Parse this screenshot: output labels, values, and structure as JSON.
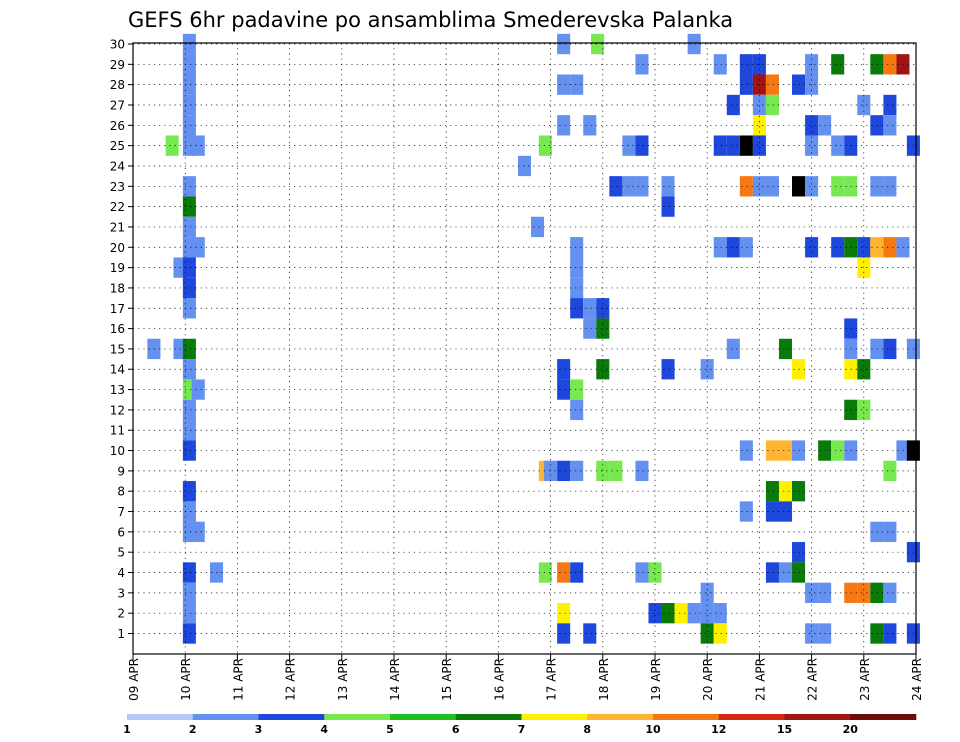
{
  "chart_data": {
    "type": "heatmap",
    "title": "GEFS 6hr padavine po ansamblima Smederevska Palanka",
    "xlabel": "",
    "ylabel": "",
    "x_ticks": [
      "09 APR",
      "10 APR",
      "11 APR",
      "12 APR",
      "13 APR",
      "14 APR",
      "15 APR",
      "16 APR",
      "17 APR",
      "18 APR",
      "19 APR",
      "20 APR",
      "21 APR",
      "22 APR",
      "23 APR",
      "24 APR"
    ],
    "x_range_days": [
      9,
      24
    ],
    "y_ticks": [
      "1",
      "2",
      "3",
      "4",
      "5",
      "6",
      "7",
      "8",
      "9",
      "10",
      "11",
      "12",
      "13",
      "14",
      "15",
      "16",
      "17",
      "18",
      "19",
      "20",
      "21",
      "22",
      "23",
      "24",
      "25",
      "26",
      "27",
      "28",
      "29",
      "30"
    ],
    "y_range": [
      1,
      30
    ],
    "grid": "dotted",
    "colorbar": {
      "labels": [
        "1",
        "2",
        "3",
        "4",
        "5",
        "6",
        "7",
        "8",
        "10",
        "12",
        "15",
        "20"
      ],
      "colors": [
        "#b4c8f8",
        "#6490f0",
        "#1e48dc",
        "#78e850",
        "#20c020",
        "#0a7a0a",
        "#fff000",
        "#ffb432",
        "#f57814",
        "#d22814",
        "#a01414",
        "#6e0a0a"
      ]
    },
    "cells": [
      [
        10.08,
        30,
        1
      ],
      [
        17.25,
        30,
        1
      ],
      [
        17.9,
        30,
        3
      ],
      [
        19.75,
        30,
        1
      ],
      [
        10.08,
        29,
        1
      ],
      [
        18.75,
        29,
        1
      ],
      [
        20.25,
        29,
        1
      ],
      [
        20.75,
        29,
        2
      ],
      [
        21.0,
        29,
        2
      ],
      [
        22.0,
        29,
        1
      ],
      [
        22.5,
        29,
        5
      ],
      [
        23.25,
        29,
        5
      ],
      [
        23.5,
        29,
        8
      ],
      [
        23.75,
        29,
        10
      ],
      [
        10.08,
        28,
        1
      ],
      [
        17.25,
        28,
        1
      ],
      [
        17.5,
        28,
        1
      ],
      [
        20.75,
        28,
        2
      ],
      [
        21.0,
        28,
        10
      ],
      [
        21.25,
        28,
        8
      ],
      [
        21.75,
        28,
        2
      ],
      [
        22.0,
        28,
        1
      ],
      [
        10.08,
        27,
        1
      ],
      [
        20.5,
        27,
        2
      ],
      [
        21.0,
        27,
        1
      ],
      [
        21.25,
        27,
        3
      ],
      [
        23.0,
        27,
        1
      ],
      [
        23.5,
        27,
        2
      ],
      [
        10.08,
        26,
        1
      ],
      [
        17.25,
        26,
        1
      ],
      [
        17.75,
        26,
        1
      ],
      [
        21.0,
        26,
        6
      ],
      [
        22.0,
        26,
        2
      ],
      [
        22.25,
        26,
        1
      ],
      [
        23.25,
        26,
        2
      ],
      [
        23.5,
        26,
        1
      ],
      [
        9.75,
        25,
        3
      ],
      [
        10.08,
        25,
        1
      ],
      [
        10.25,
        25,
        1
      ],
      [
        16.9,
        25,
        3
      ],
      [
        18.5,
        25,
        1
      ],
      [
        18.75,
        25,
        2
      ],
      [
        20.25,
        25,
        2
      ],
      [
        20.5,
        25,
        2
      ],
      [
        20.75,
        25,
        15
      ],
      [
        21.0,
        25,
        2
      ],
      [
        22.0,
        25,
        1
      ],
      [
        22.5,
        25,
        1
      ],
      [
        22.75,
        25,
        2
      ],
      [
        23.95,
        25,
        2
      ],
      [
        16.5,
        24,
        1
      ],
      [
        10.08,
        23,
        1
      ],
      [
        18.25,
        23,
        2
      ],
      [
        18.5,
        23,
        1
      ],
      [
        18.75,
        23,
        1
      ],
      [
        19.25,
        23,
        1
      ],
      [
        20.75,
        23,
        8
      ],
      [
        21.0,
        23,
        1
      ],
      [
        21.25,
        23,
        1
      ],
      [
        21.75,
        23,
        15
      ],
      [
        22.0,
        23,
        1
      ],
      [
        22.5,
        23,
        3
      ],
      [
        22.75,
        23,
        3
      ],
      [
        23.25,
        23,
        1
      ],
      [
        23.5,
        23,
        1
      ],
      [
        10.08,
        22,
        5
      ],
      [
        19.25,
        22,
        2
      ],
      [
        10.08,
        21,
        1
      ],
      [
        16.75,
        21,
        1
      ],
      [
        10.08,
        20,
        1
      ],
      [
        10.25,
        20,
        1
      ],
      [
        20.25,
        20,
        1
      ],
      [
        20.5,
        20,
        2
      ],
      [
        20.75,
        20,
        1
      ],
      [
        17.5,
        20,
        1
      ],
      [
        22.0,
        20,
        2
      ],
      [
        22.5,
        20,
        2
      ],
      [
        22.75,
        20,
        5
      ],
      [
        23.0,
        20,
        2
      ],
      [
        23.25,
        20,
        7
      ],
      [
        23.5,
        20,
        8
      ],
      [
        23.75,
        20,
        1
      ],
      [
        9.9,
        19,
        1
      ],
      [
        10.08,
        19,
        2
      ],
      [
        17.5,
        19,
        1
      ],
      [
        23.0,
        19,
        6
      ],
      [
        10.08,
        18,
        2
      ],
      [
        17.5,
        18,
        1
      ],
      [
        10.08,
        17,
        1
      ],
      [
        17.5,
        17,
        2
      ],
      [
        17.75,
        17,
        1
      ],
      [
        18.0,
        17,
        2
      ],
      [
        17.75,
        16,
        1
      ],
      [
        18.0,
        16,
        5
      ],
      [
        22.75,
        16,
        2
      ],
      [
        9.4,
        15,
        1
      ],
      [
        9.9,
        15,
        1
      ],
      [
        10.08,
        15,
        5
      ],
      [
        20.5,
        15,
        1
      ],
      [
        21.5,
        15,
        5
      ],
      [
        22.75,
        15,
        1
      ],
      [
        23.25,
        15,
        1
      ],
      [
        23.5,
        15,
        2
      ],
      [
        23.95,
        15,
        1
      ],
      [
        10.08,
        14,
        1
      ],
      [
        17.25,
        14,
        2
      ],
      [
        18.0,
        14,
        5
      ],
      [
        19.25,
        14,
        2
      ],
      [
        20.0,
        14,
        1
      ],
      [
        21.75,
        14,
        6
      ],
      [
        22.75,
        14,
        6
      ],
      [
        23.0,
        14,
        5
      ],
      [
        10.08,
        13,
        3
      ],
      [
        10.25,
        13,
        1
      ],
      [
        17.25,
        13,
        2
      ],
      [
        17.5,
        13,
        3
      ],
      [
        10.08,
        12,
        1
      ],
      [
        17.5,
        12,
        1
      ],
      [
        22.75,
        12,
        5
      ],
      [
        23.0,
        12,
        3
      ],
      [
        10.08,
        11,
        1
      ],
      [
        10.08,
        10,
        2
      ],
      [
        20.75,
        10,
        1
      ],
      [
        21.25,
        10,
        7
      ],
      [
        21.5,
        10,
        7
      ],
      [
        21.75,
        10,
        1
      ],
      [
        22.25,
        10,
        5
      ],
      [
        22.5,
        10,
        3
      ],
      [
        22.75,
        10,
        1
      ],
      [
        23.75,
        10,
        1
      ],
      [
        23.95,
        10,
        15
      ],
      [
        16.9,
        9,
        7
      ],
      [
        17.0,
        9,
        1
      ],
      [
        17.25,
        9,
        2
      ],
      [
        17.5,
        9,
        1
      ],
      [
        18.0,
        9,
        3
      ],
      [
        18.25,
        9,
        3
      ],
      [
        18.75,
        9,
        1
      ],
      [
        23.5,
        9,
        3
      ],
      [
        10.08,
        8,
        2
      ],
      [
        21.25,
        8,
        5
      ],
      [
        21.5,
        8,
        6
      ],
      [
        21.75,
        8,
        5
      ],
      [
        10.08,
        7,
        1
      ],
      [
        20.75,
        7,
        1
      ],
      [
        21.25,
        7,
        2
      ],
      [
        21.5,
        7,
        2
      ],
      [
        10.08,
        6,
        1
      ],
      [
        10.25,
        6,
        1
      ],
      [
        23.25,
        6,
        1
      ],
      [
        23.5,
        6,
        1
      ],
      [
        21.75,
        5,
        2
      ],
      [
        23.95,
        5,
        2
      ],
      [
        10.08,
        4,
        2
      ],
      [
        10.6,
        4,
        1
      ],
      [
        16.9,
        4,
        3
      ],
      [
        17.25,
        4,
        8
      ],
      [
        17.5,
        4,
        2
      ],
      [
        18.75,
        4,
        1
      ],
      [
        19.0,
        4,
        3
      ],
      [
        21.25,
        4,
        2
      ],
      [
        21.5,
        4,
        1
      ],
      [
        21.75,
        4,
        5
      ],
      [
        10.08,
        3,
        1
      ],
      [
        20.0,
        3,
        1
      ],
      [
        22.0,
        3,
        1
      ],
      [
        22.25,
        3,
        1
      ],
      [
        22.75,
        3,
        8
      ],
      [
        23.0,
        3,
        8
      ],
      [
        23.25,
        3,
        5
      ],
      [
        23.5,
        3,
        1
      ],
      [
        10.08,
        2,
        1
      ],
      [
        17.25,
        2,
        6
      ],
      [
        19.0,
        2,
        2
      ],
      [
        19.25,
        2,
        5
      ],
      [
        19.5,
        2,
        6
      ],
      [
        19.75,
        2,
        1
      ],
      [
        20.0,
        2,
        1
      ],
      [
        20.25,
        2,
        1
      ],
      [
        10.08,
        1,
        2
      ],
      [
        17.25,
        1,
        2
      ],
      [
        17.75,
        1,
        2
      ],
      [
        20.0,
        1,
        5
      ],
      [
        20.25,
        1,
        6
      ],
      [
        22.0,
        1,
        1
      ],
      [
        22.25,
        1,
        1
      ],
      [
        23.25,
        1,
        5
      ],
      [
        23.5,
        1,
        2
      ],
      [
        23.95,
        1,
        2
      ]
    ]
  }
}
